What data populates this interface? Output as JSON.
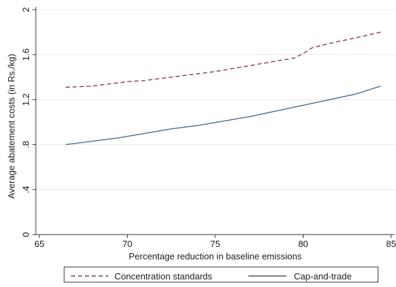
{
  "chart_data": {
    "type": "line",
    "title": "",
    "xlabel": "Percentage reduction in baseline emissions",
    "ylabel": "Average abatement costs (in Rs./kg)",
    "xlim": [
      64.8,
      85.2
    ],
    "ylim": [
      0,
      2
    ],
    "x_ticks": [
      65,
      70,
      75,
      80,
      85
    ],
    "x_tick_labels": [
      "65",
      "70",
      "75",
      "80",
      "85"
    ],
    "y_ticks": [
      0,
      0.4,
      0.8,
      1.2,
      1.6,
      2
    ],
    "y_tick_labels": [
      "0",
      ".4",
      ".8",
      "1.2",
      "1.6",
      "2"
    ],
    "grid": "horizontal",
    "legend_position": "bottom",
    "series": [
      {
        "name": "Concentration standards",
        "style": "dashed",
        "color": "#8b3a46",
        "x": [
          66.5,
          68.0,
          69.0,
          70.0,
          71.0,
          72.5,
          74.0,
          75.0,
          76.5,
          78.0,
          79.5,
          80.0,
          80.5,
          81.5,
          83.0,
          84.4
        ],
        "y": [
          1.31,
          1.32,
          1.34,
          1.36,
          1.37,
          1.4,
          1.43,
          1.45,
          1.49,
          1.53,
          1.57,
          1.61,
          1.66,
          1.7,
          1.75,
          1.8
        ]
      },
      {
        "name": "Cap-and-trade",
        "style": "solid",
        "color": "#4a6f87",
        "x": [
          66.5,
          68.0,
          69.5,
          71.0,
          72.5,
          74.0,
          75.5,
          77.0,
          78.5,
          80.0,
          81.5,
          83.0,
          84.4
        ],
        "y": [
          0.8,
          0.83,
          0.86,
          0.9,
          0.94,
          0.97,
          1.01,
          1.05,
          1.1,
          1.15,
          1.2,
          1.25,
          1.32
        ]
      }
    ]
  }
}
